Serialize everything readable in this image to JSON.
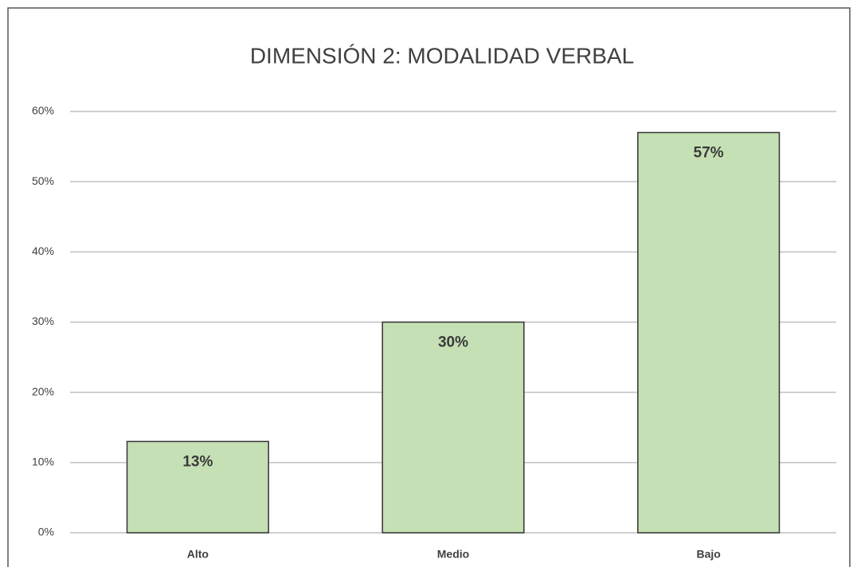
{
  "chart_data": {
    "type": "bar",
    "title": "DIMENSIÓN 2: MODALIDAD VERBAL",
    "categories": [
      "Alto",
      "Medio",
      "Bajo"
    ],
    "values": [
      13,
      30,
      57
    ],
    "value_labels": [
      "13%",
      "30%",
      "57%"
    ],
    "color": "#c5e0b4",
    "ylim": [
      0,
      60
    ],
    "yticks": [
      {
        "value": 0,
        "label": "0%"
      },
      {
        "value": 10,
        "label": "10%"
      },
      {
        "value": 20,
        "label": "20%"
      },
      {
        "value": 30,
        "label": "30%"
      },
      {
        "value": 40,
        "label": "40%"
      },
      {
        "value": 50,
        "label": "50%"
      },
      {
        "value": 60,
        "label": "60%"
      }
    ],
    "grid": true
  }
}
